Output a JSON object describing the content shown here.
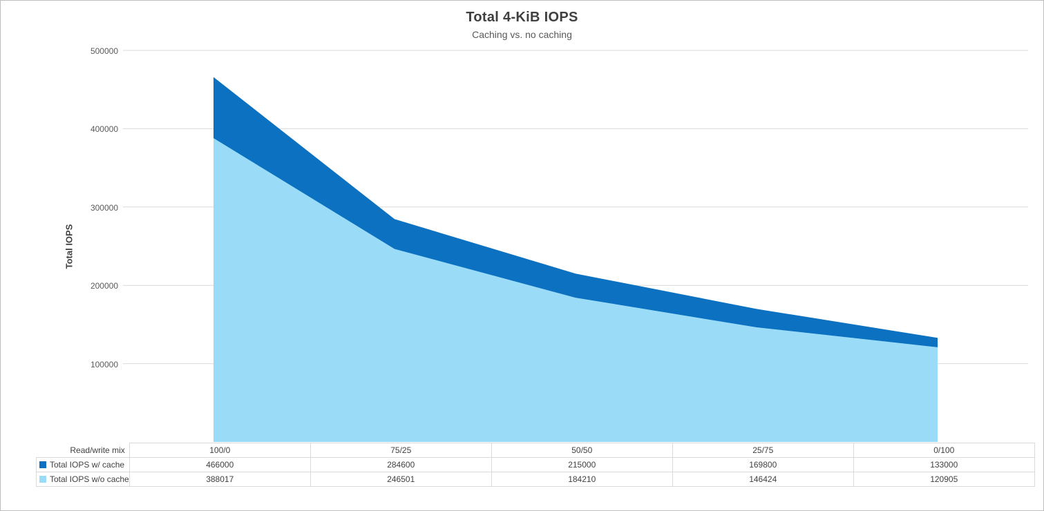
{
  "title": "Total 4-KiB IOPS",
  "subtitle": "Caching vs. no caching",
  "colors": {
    "with_cache": "#0B71C0",
    "without_cache": "#9ADCF7",
    "grid": "#D9D9D9",
    "table_border": "#D9D9D9",
    "frame": "#BDBDBD",
    "title_text": "#404040",
    "tick_text": "#595959"
  },
  "chart_data": {
    "type": "area",
    "title": "Total 4-KiB IOPS",
    "subtitle": "Caching vs. no caching",
    "xlabel": "Read/write mix",
    "ylabel": "Total IOPS",
    "categories": [
      "100/0",
      "75/25",
      "50/50",
      "25/75",
      "0/100"
    ],
    "series": [
      {
        "name": "Total IOPS w/ cache",
        "color": "#0B71C0",
        "values": [
          466000,
          284600,
          215000,
          169800,
          133000
        ]
      },
      {
        "name": "Total IOPS w/o cache",
        "color": "#9ADCF7",
        "values": [
          388017,
          246501,
          184210,
          146424,
          120905
        ]
      }
    ],
    "ylim": [
      0,
      500000
    ],
    "ytick_step": 100000,
    "yticks_top_to_bottom": [
      "500000",
      "400000",
      "300000",
      "200000",
      "100000"
    ],
    "grid": true,
    "legend_position": "table-row-headers"
  }
}
